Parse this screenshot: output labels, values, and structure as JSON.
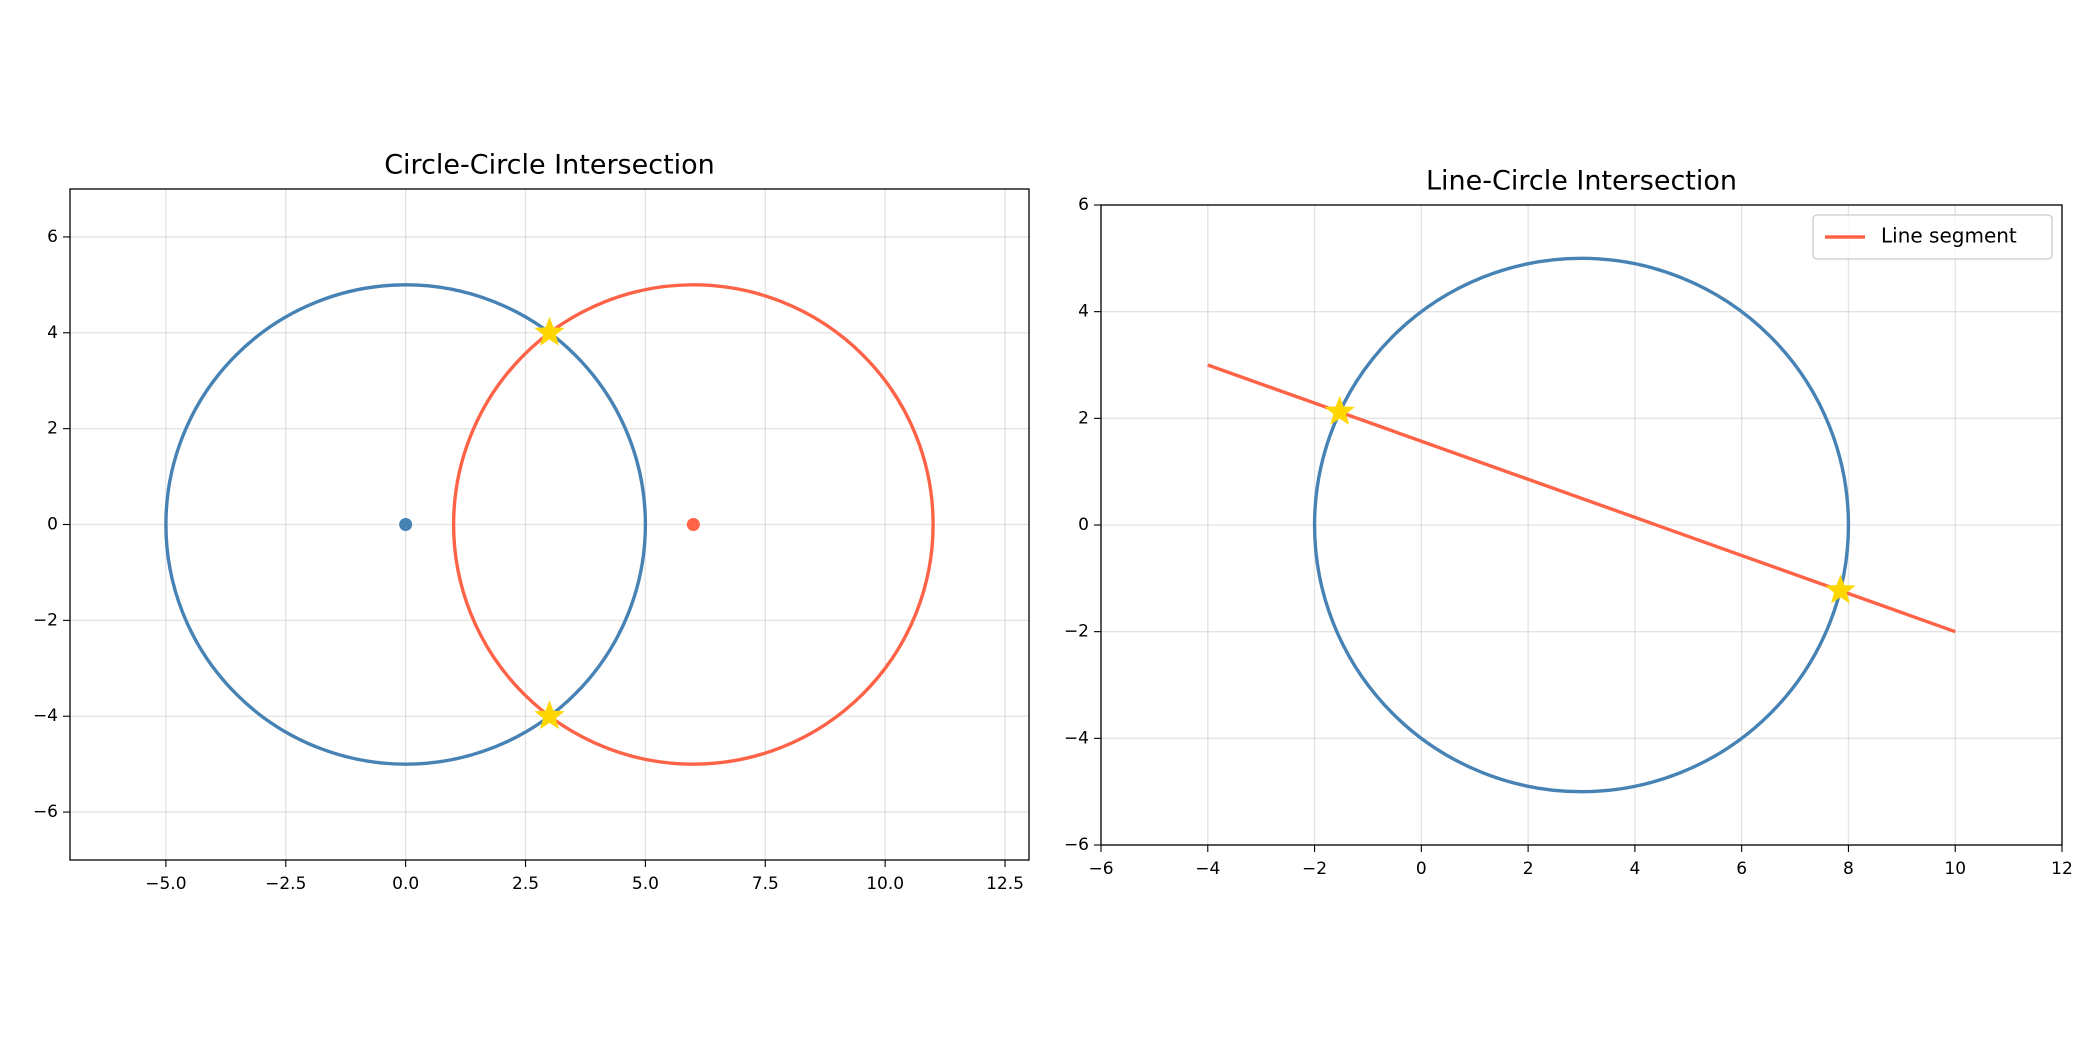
{
  "chart_data": [
    {
      "type": "geometry",
      "title": "Circle-Circle Intersection",
      "xlim": [
        -7,
        13
      ],
      "ylim": [
        -7,
        7
      ],
      "xticks": [
        {
          "value": -5,
          "label": "−5.0"
        },
        {
          "value": -2.5,
          "label": "−2.5"
        },
        {
          "value": 0,
          "label": "0.0"
        },
        2.5,
        {
          "value": 5,
          "label": "5.0"
        },
        7.5,
        {
          "value": 10,
          "label": "10.0"
        },
        12.5
      ],
      "yticks": [
        {
          "value": -6,
          "label": "−6"
        },
        {
          "value": -4,
          "label": "−4"
        },
        {
          "value": -2,
          "label": "−2"
        },
        0,
        2,
        4,
        6
      ],
      "grid": true,
      "circles": [
        {
          "center": [
            0,
            0
          ],
          "radius": 5,
          "color": "#4682b4",
          "show_center": true
        },
        {
          "center": [
            6,
            0
          ],
          "radius": 5,
          "color": "#ff6347",
          "show_center": true
        }
      ],
      "intersections": {
        "x": [
          3,
          3
        ],
        "y": [
          4,
          -4
        ],
        "color": "#ffd700"
      }
    },
    {
      "type": "geometry",
      "title": "Line-Circle Intersection",
      "xlim": [
        -6,
        12
      ],
      "ylim": [
        -6,
        6
      ],
      "xticks": [
        {
          "value": -6,
          "label": "−6"
        },
        {
          "value": -4,
          "label": "−4"
        },
        {
          "value": -2,
          "label": "−2"
        },
        0,
        2,
        4,
        6,
        8,
        10,
        12
      ],
      "yticks": [
        {
          "value": -6,
          "label": "−6"
        },
        {
          "value": -4,
          "label": "−4"
        },
        {
          "value": -2,
          "label": "−2"
        },
        0,
        2,
        4,
        6
      ],
      "grid": true,
      "circles": [
        {
          "center": [
            3,
            0
          ],
          "radius": 5,
          "color": "#4682b4",
          "show_center": false
        }
      ],
      "series": [
        {
          "name": "Line segment",
          "color": "#ff6347",
          "x": [
            -4,
            10
          ],
          "values": [
            3,
            -2
          ]
        }
      ],
      "legend": "upper right",
      "intersections": {
        "x": [
          -1.53,
          7.85
        ],
        "y": [
          2.12,
          -1.23
        ],
        "color": "#ffd700"
      }
    }
  ]
}
